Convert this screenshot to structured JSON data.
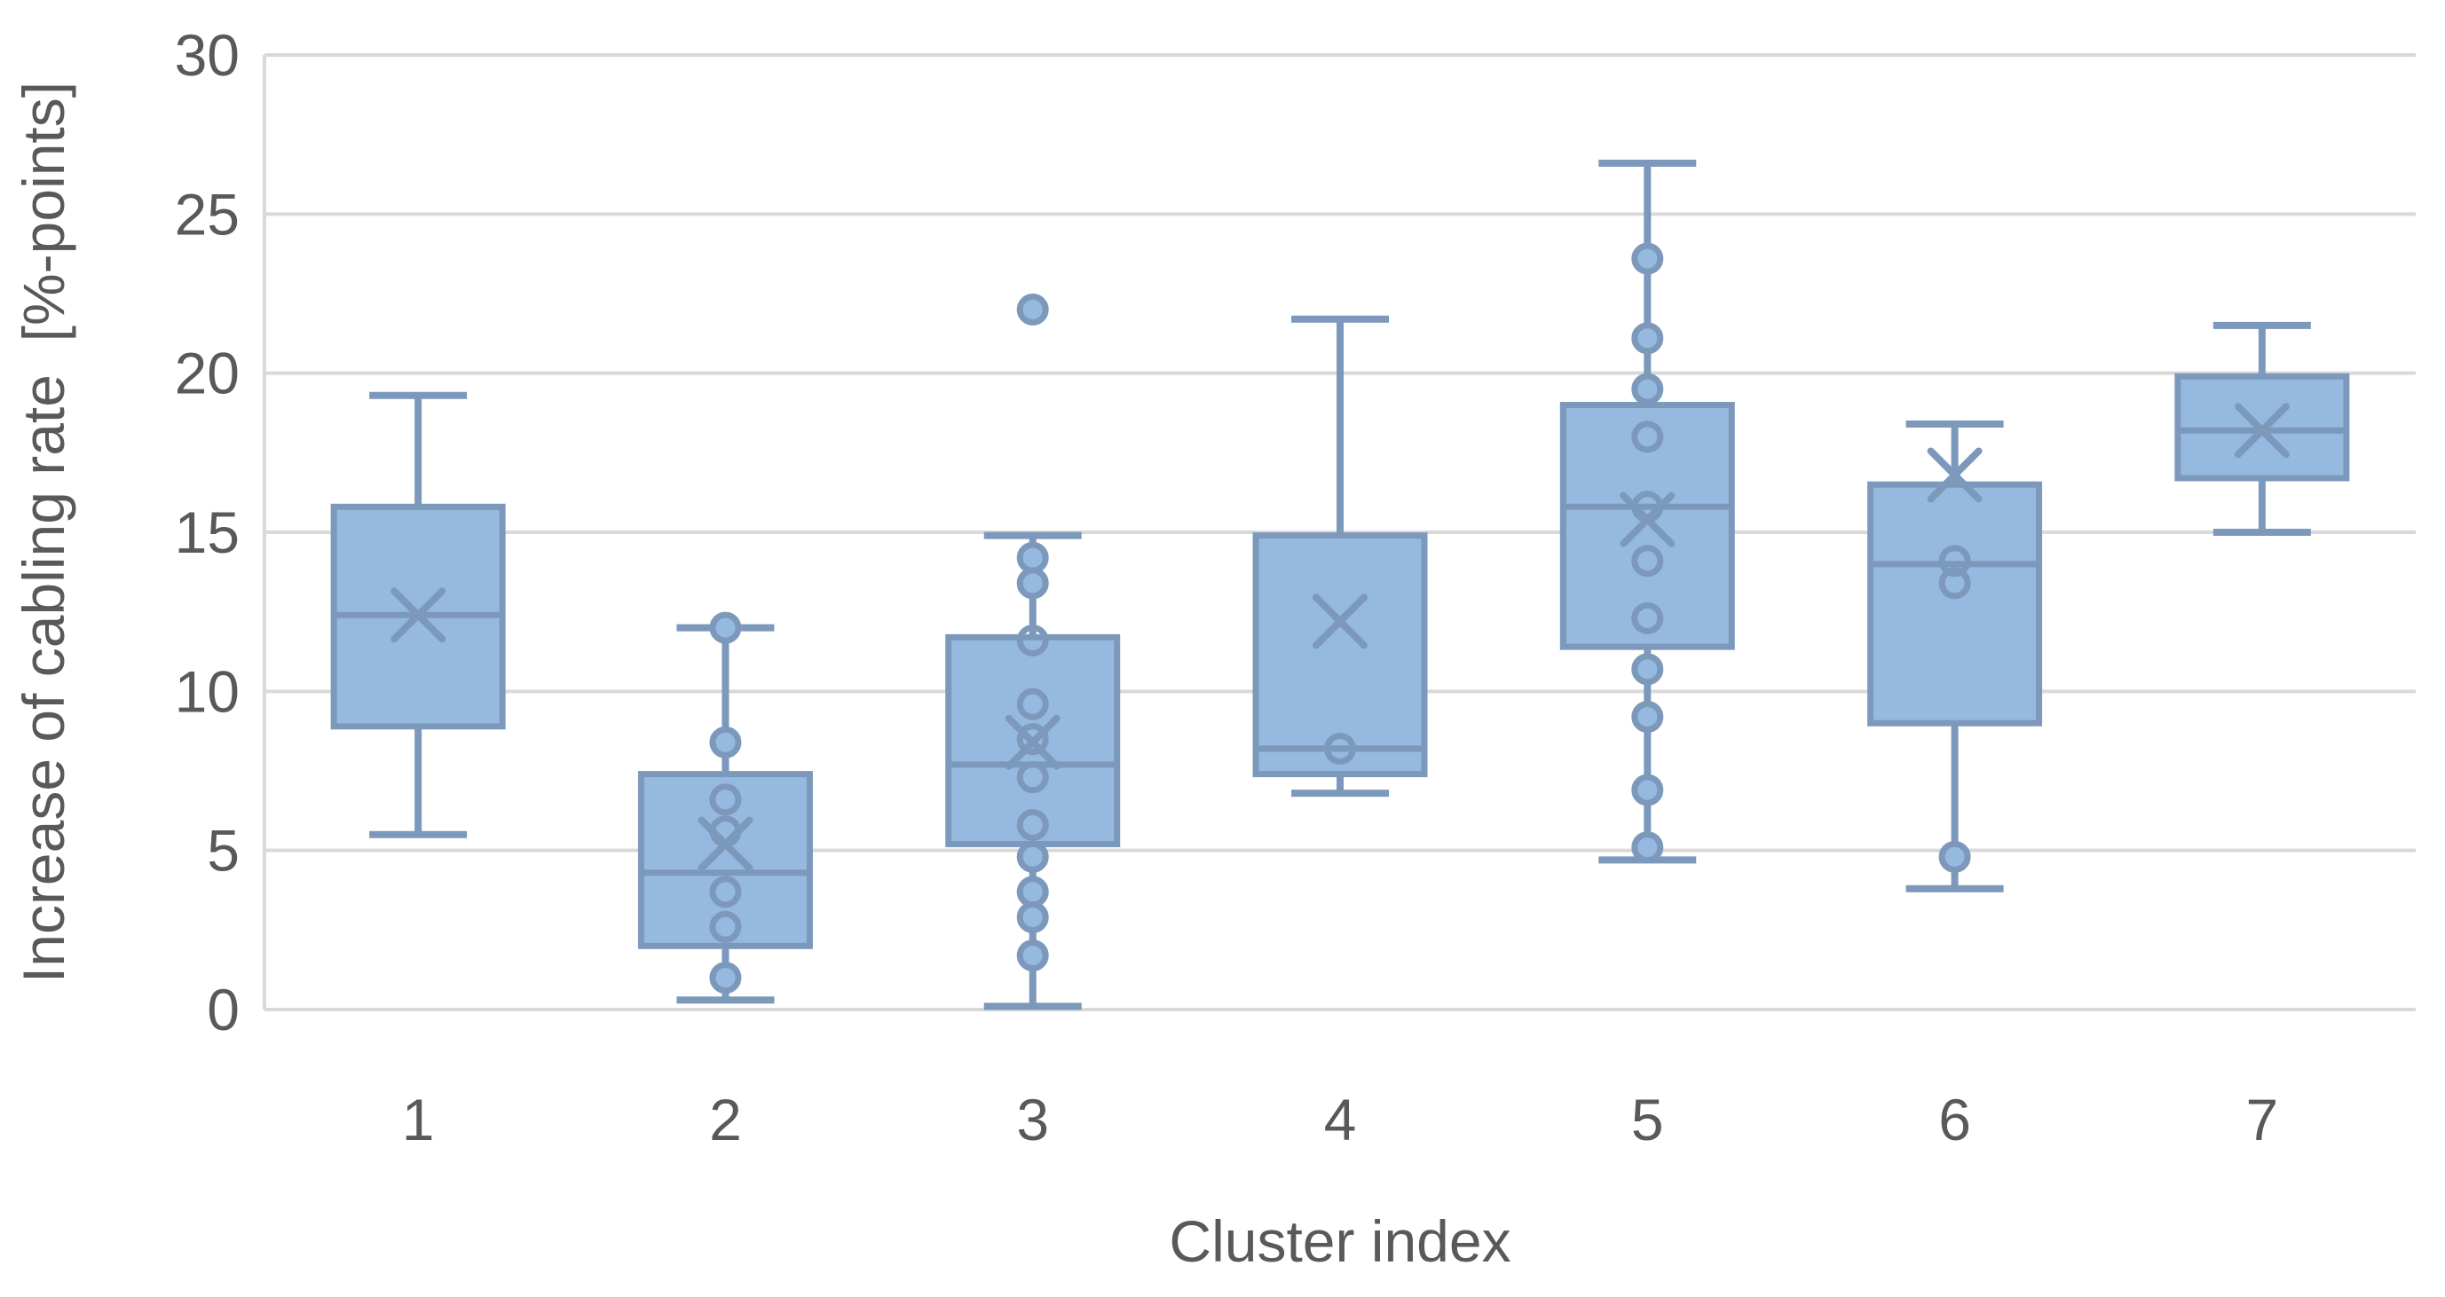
{
  "chart_data": {
    "type": "box",
    "title": "",
    "xlabel": "Cluster index",
    "ylabel": "Increase of cabling rate  [%-points]",
    "grid": true,
    "legend_position": "none",
    "y_axis": {
      "min": 0,
      "max": 30,
      "step": 5,
      "tick_labels": [
        "0",
        "5",
        "10",
        "15",
        "20",
        "25",
        "30"
      ]
    },
    "categories": [
      "1",
      "2",
      "3",
      "4",
      "5",
      "6",
      "7"
    ],
    "colors": {
      "box_fill": "#96B9DF",
      "box_line": "#7C99BC",
      "gridline": "#D9D9D9",
      "text": "#595959",
      "background": "#FFFFFF"
    },
    "series": [
      {
        "cluster": "1",
        "whisker_low": 5.5,
        "q1": 8.9,
        "median": 12.4,
        "q3": 15.8,
        "whisker_high": 19.3,
        "mean": 12.4,
        "points": []
      },
      {
        "cluster": "2",
        "whisker_low": 0.3,
        "q1": 2.0,
        "median": 4.3,
        "q3": 7.4,
        "whisker_high": 12.0,
        "mean": 5.2,
        "points": [
          {
            "v": 12.0,
            "style": "filled"
          },
          {
            "v": 8.4,
            "style": "filled"
          },
          {
            "v": 6.6,
            "style": "open"
          },
          {
            "v": 5.6,
            "style": "open"
          },
          {
            "v": 3.7,
            "style": "open"
          },
          {
            "v": 2.6,
            "style": "open"
          },
          {
            "v": 1.0,
            "style": "filled"
          }
        ]
      },
      {
        "cluster": "3",
        "whisker_low": 0.1,
        "q1": 5.2,
        "median": 7.7,
        "q3": 11.7,
        "whisker_high": 14.9,
        "mean": 8.4,
        "points": [
          {
            "v": 22.0,
            "style": "filled"
          },
          {
            "v": 14.2,
            "style": "filled"
          },
          {
            "v": 13.4,
            "style": "filled"
          },
          {
            "v": 11.6,
            "style": "open"
          },
          {
            "v": 9.6,
            "style": "open"
          },
          {
            "v": 8.5,
            "style": "open"
          },
          {
            "v": 7.3,
            "style": "open"
          },
          {
            "v": 5.8,
            "style": "open"
          },
          {
            "v": 4.8,
            "style": "filled"
          },
          {
            "v": 3.7,
            "style": "filled"
          },
          {
            "v": 2.9,
            "style": "filled"
          },
          {
            "v": 1.7,
            "style": "filled"
          }
        ]
      },
      {
        "cluster": "4",
        "whisker_low": 6.8,
        "q1": 7.4,
        "median": 8.2,
        "q3": 14.9,
        "whisker_high": 21.7,
        "mean": 12.2,
        "points": [
          {
            "v": 8.2,
            "style": "open"
          }
        ]
      },
      {
        "cluster": "5",
        "whisker_low": 4.7,
        "q1": 11.4,
        "median": 15.8,
        "q3": 19.0,
        "whisker_high": 26.6,
        "mean": 15.4,
        "points": [
          {
            "v": 23.6,
            "style": "filled"
          },
          {
            "v": 21.1,
            "style": "filled"
          },
          {
            "v": 19.5,
            "style": "filled"
          },
          {
            "v": 18.0,
            "style": "open"
          },
          {
            "v": 15.8,
            "style": "open"
          },
          {
            "v": 14.1,
            "style": "open"
          },
          {
            "v": 12.3,
            "style": "open"
          },
          {
            "v": 10.7,
            "style": "filled"
          },
          {
            "v": 9.2,
            "style": "filled"
          },
          {
            "v": 6.9,
            "style": "filled"
          },
          {
            "v": 5.1,
            "style": "filled"
          }
        ]
      },
      {
        "cluster": "6",
        "whisker_low": 3.8,
        "q1": 9.0,
        "median": 14.0,
        "q3": 16.5,
        "whisker_high": 18.4,
        "mean": 16.8,
        "points": [
          {
            "v": 14.1,
            "style": "open"
          },
          {
            "v": 13.4,
            "style": "open"
          },
          {
            "v": 4.8,
            "style": "filled"
          }
        ]
      },
      {
        "cluster": "7",
        "whisker_low": 15.0,
        "q1": 16.7,
        "median": 18.2,
        "q3": 19.9,
        "whisker_high": 21.5,
        "mean": 18.2,
        "points": []
      }
    ]
  }
}
